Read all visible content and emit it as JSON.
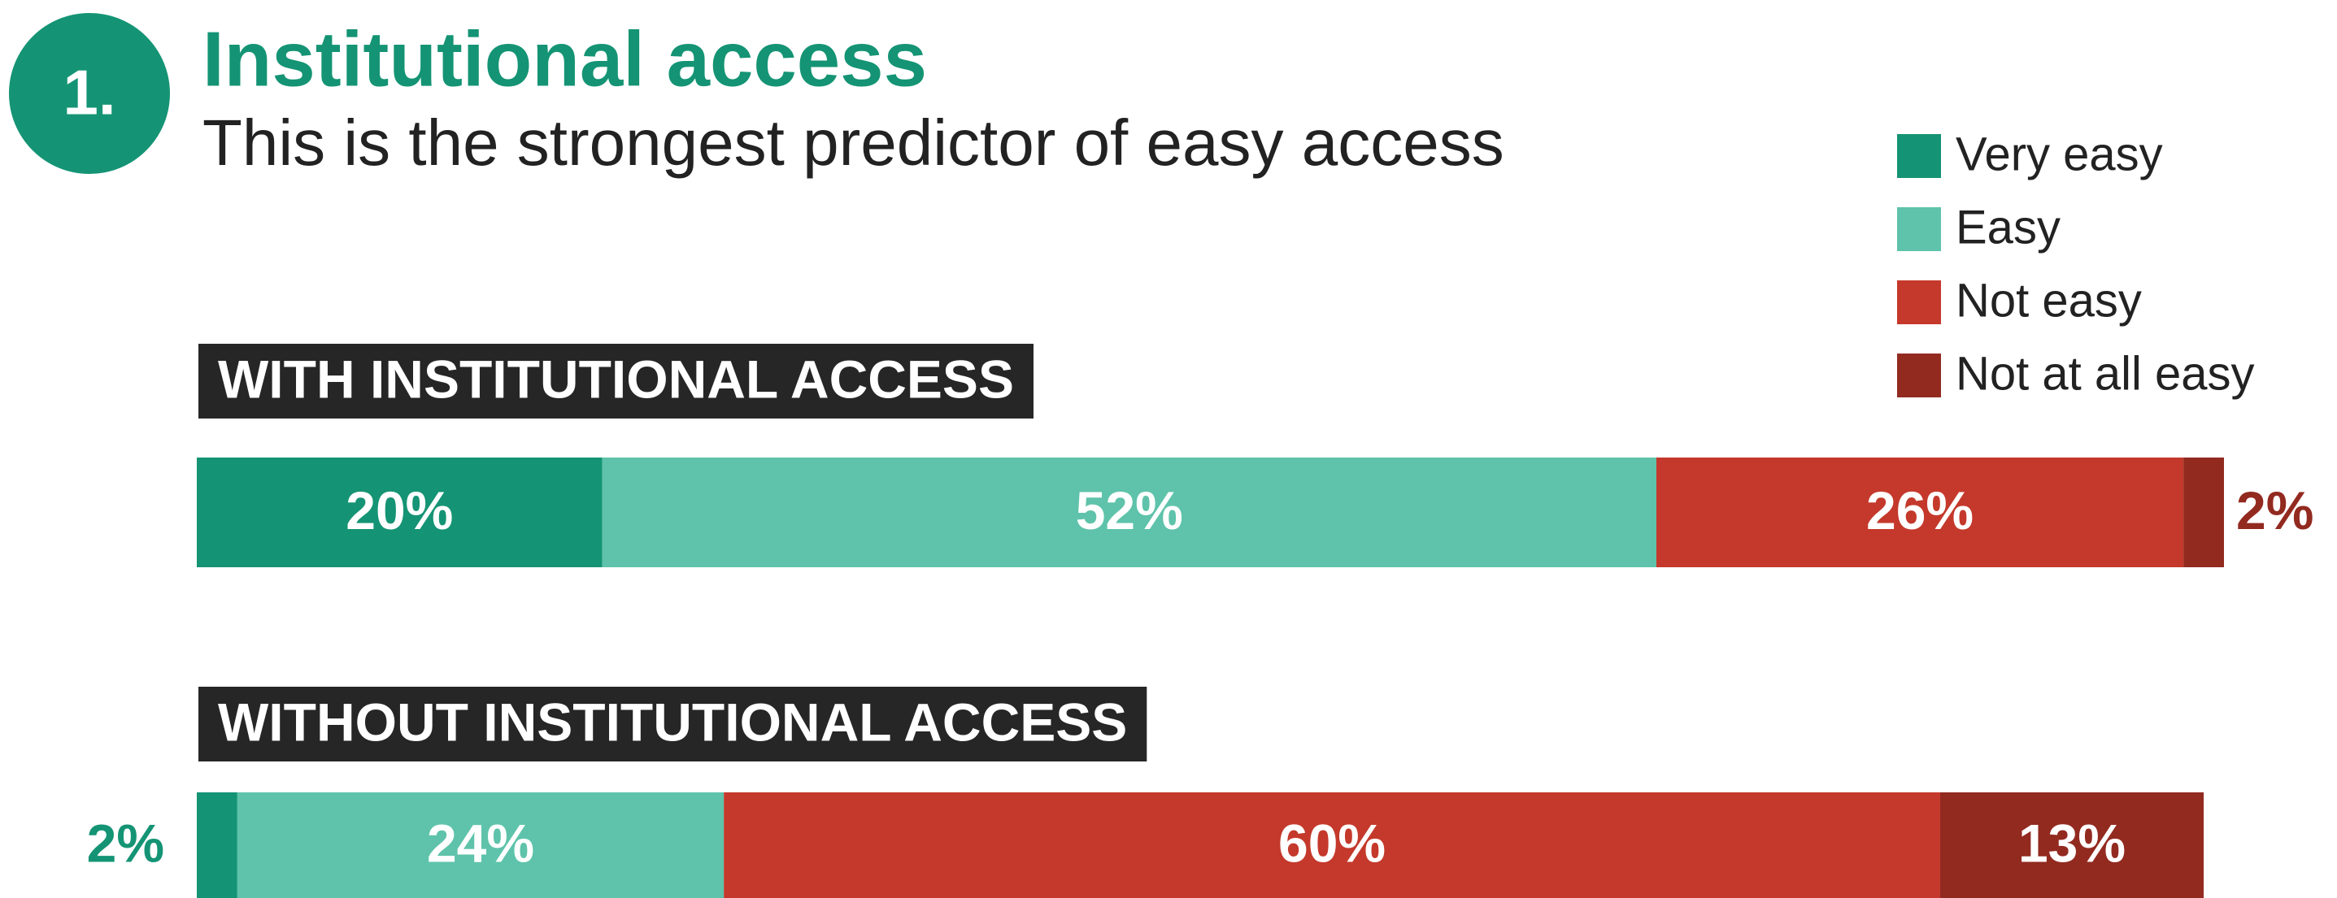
{
  "chart_data": {
    "type": "stacked-bar-horizontal",
    "badge": "1.",
    "title": "Institutional access",
    "subtitle": "This is the strongest predictor of easy access",
    "categories": [
      "WITH INSTITUTIONAL ACCESS",
      "WITHOUT INSTITUTIONAL ACCESS"
    ],
    "series": [
      {
        "name": "Very easy",
        "color": "#149474",
        "values": [
          20,
          2
        ],
        "value_labels": [
          "20%",
          "2%"
        ]
      },
      {
        "name": "Easy",
        "color": "#5ec3aa",
        "values": [
          52,
          24
        ],
        "value_labels": [
          "52%",
          "24%"
        ]
      },
      {
        "name": "Not easy",
        "color": "#c4392b",
        "values": [
          26,
          60
        ],
        "value_labels": [
          "26%",
          "60%"
        ]
      },
      {
        "name": "Not at all easy",
        "color": "#922a20",
        "values": [
          2,
          13
        ],
        "value_labels": [
          "2%",
          "13%"
        ]
      }
    ],
    "xlim": [
      0,
      100
    ],
    "legend": "top-right"
  }
}
